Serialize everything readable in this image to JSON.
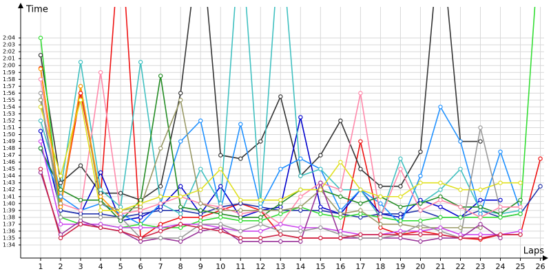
{
  "chart_data": {
    "type": "line",
    "y_label": "Time",
    "x_label": "Laps",
    "x": [
      1,
      2,
      3,
      4,
      5,
      6,
      7,
      8,
      9,
      10,
      11,
      12,
      13,
      14,
      15,
      16,
      17,
      18,
      19,
      20,
      21,
      22,
      23,
      24,
      25,
      26
    ],
    "xlim": [
      0,
      26.6
    ],
    "ylim": [
      92,
      128
    ],
    "xticks": [
      1,
      2,
      3,
      4,
      5,
      6,
      7,
      8,
      9,
      10,
      11,
      12,
      13,
      14,
      15,
      16,
      17,
      18,
      19,
      20,
      21,
      22,
      23,
      24,
      25,
      26
    ],
    "yticks": [
      {
        "value": 94,
        "label": "1:34"
      },
      {
        "value": 95,
        "label": "1:35"
      },
      {
        "value": 96,
        "label": "1:36"
      },
      {
        "value": 97,
        "label": "1:37"
      },
      {
        "value": 98,
        "label": "1:38"
      },
      {
        "value": 99,
        "label": "1:39"
      },
      {
        "value": 100,
        "label": "1:40"
      },
      {
        "value": 101,
        "label": "1:41"
      },
      {
        "value": 102,
        "label": "1:42"
      },
      {
        "value": 103,
        "label": "1:43"
      },
      {
        "value": 104,
        "label": "1:44"
      },
      {
        "value": 105,
        "label": "1:45"
      },
      {
        "value": 106,
        "label": "1:46"
      },
      {
        "value": 107,
        "label": "1:47"
      },
      {
        "value": 108,
        "label": "1:48"
      },
      {
        "value": 109,
        "label": "1:49"
      },
      {
        "value": 110,
        "label": "1:50"
      },
      {
        "value": 111,
        "label": "1:51"
      },
      {
        "value": 112,
        "label": "1:52"
      },
      {
        "value": 113,
        "label": "1:53"
      },
      {
        "value": 114,
        "label": "1:54"
      },
      {
        "value": 115,
        "label": "1:55"
      },
      {
        "value": 116,
        "label": "1:56"
      },
      {
        "value": 117,
        "label": "1:57"
      },
      {
        "value": 118,
        "label": "1:58"
      },
      {
        "value": 119,
        "label": "1:59"
      },
      {
        "value": 120,
        "label": "2:00"
      },
      {
        "value": 121,
        "label": "2:01"
      },
      {
        "value": 122,
        "label": "2:02"
      },
      {
        "value": 123,
        "label": "2:03"
      },
      {
        "value": 124,
        "label": "2:04"
      }
    ],
    "grid": true,
    "series": [
      {
        "color": "#ee1111",
        "values": [
          119.6,
          99.6,
          116,
          101,
          140,
          95,
          97,
          98,
          98,
          99,
          100,
          99,
          95.5,
          95,
          95,
          95,
          109,
          96.5,
          95.5,
          96,
          95.5,
          95,
          94.8,
          95.5,
          95.5,
          106.5
        ]
      },
      {
        "color": "#333333",
        "values": [
          121.5,
          103,
          105.5,
          101.5,
          101.5,
          100.5,
          102.5,
          116,
          140,
          107,
          106.5,
          109,
          115.5,
          104,
          107,
          112,
          105,
          102.5,
          102.5,
          107.5,
          140,
          109,
          109,
          null,
          null,
          null
        ]
      },
      {
        "color": "#0000cc",
        "values": [
          110.5,
          99,
          98.5,
          104.5,
          97.5,
          98,
          99.5,
          102.5,
          98.5,
          102.5,
          98,
          99,
          99.5,
          112.5,
          99.5,
          98.5,
          102,
          98.5,
          98,
          100.5,
          99.5,
          98,
          100.5,
          100.5,
          null,
          null
        ]
      },
      {
        "color": "#2233aa",
        "values": [
          115,
          99,
          98.5,
          98.5,
          98,
          98.5,
          99,
          99,
          98.5,
          99.5,
          100,
          99.5,
          99,
          99,
          99,
          98.5,
          98,
          98.5,
          98.5,
          99,
          98,
          98,
          99,
          98,
          98.5,
          102.5
        ]
      },
      {
        "color": "#1e90ff",
        "values": [
          108,
          101,
          99,
          100,
          98.5,
          97,
          100,
          109,
          112,
          99,
          111.5,
          99.5,
          105,
          106.5,
          105,
          99,
          102,
          100,
          97,
          104,
          114,
          109,
          98.5,
          107.5,
          99,
          null
        ]
      },
      {
        "color": "#40c0c0",
        "values": [
          112,
          102,
          120.5,
          102,
          99.5,
          120.5,
          100,
          98.5,
          105,
          100,
          140,
          100,
          140,
          104,
          105,
          102,
          102,
          98,
          106.5,
          100,
          102,
          105,
          99,
          98.5,
          99,
          null
        ]
      },
      {
        "color": "#228b22",
        "values": [
          108,
          102,
          100.5,
          100.5,
          97.5,
          100.5,
          118.5,
          99.5,
          99,
          98.5,
          98,
          98,
          100,
          102,
          102,
          101,
          100,
          101,
          99.5,
          100,
          101,
          99.5,
          99.5,
          98.5,
          100.5,
          null
        ]
      },
      {
        "color": "#33dd33",
        "values": [
          124,
          98,
          97,
          97,
          96.5,
          97,
          96.5,
          96.5,
          97.5,
          98,
          97.5,
          97.5,
          98.5,
          99.5,
          98.5,
          98,
          98.5,
          98,
          97.5,
          97.5,
          98,
          98,
          98,
          98,
          98.5,
          140
        ]
      },
      {
        "color": "#ff88aa",
        "values": [
          118,
          100,
          99,
          119,
          98.5,
          99,
          100,
          101,
          100,
          99.5,
          98.5,
          99,
          97,
          101,
          103,
          102,
          116,
          98,
          105,
          99,
          100.5,
          99.5,
          98,
          99.5,
          99.5,
          null
        ]
      },
      {
        "color": "#999966",
        "values": [
          115,
          100,
          117,
          100,
          99,
          99.5,
          108,
          115,
          100,
          99,
          99,
          99,
          99,
          99.5,
          102,
          98.5,
          99,
          97,
          97,
          96.5,
          96.5,
          96.5,
          96.5,
          null,
          null,
          null
        ]
      },
      {
        "color": "#e0e020",
        "values": [
          114,
          104,
          115,
          99,
          99,
          100,
          101,
          101,
          102,
          105,
          100.5,
          100.5,
          100.5,
          102,
          102,
          106,
          102,
          101,
          101,
          103,
          103,
          102,
          102,
          103,
          103,
          null
        ]
      },
      {
        "color": "#ff9900",
        "values": [
          119.5,
          99.5,
          117,
          101,
          98,
          null,
          null,
          null,
          null,
          null,
          null,
          null,
          null,
          null,
          null,
          null,
          null,
          null,
          null,
          null,
          null,
          null,
          null,
          null,
          null,
          null
        ]
      },
      {
        "color": "#cc44ee",
        "values": [
          109,
          97,
          97,
          97,
          96.5,
          96.5,
          96.5,
          97,
          97,
          96.5,
          96,
          96,
          97,
          96.5,
          96.5,
          96,
          95.5,
          95.5,
          96,
          96,
          96.5,
          95.5,
          95.5,
          95.5,
          96,
          null
        ]
      },
      {
        "color": "#993399",
        "values": [
          104.5,
          95.5,
          97.5,
          96.5,
          96,
          94.5,
          95,
          94.5,
          96,
          96.5,
          94.5,
          94.5,
          94.5,
          94.5,
          103,
          95,
          95,
          95,
          95,
          94.5,
          95,
          95,
          97,
          95,
          null,
          null
        ]
      },
      {
        "color": "#999999",
        "values": [
          116,
          98,
          98,
          98,
          98,
          95,
          95,
          95,
          97,
          97,
          96,
          97,
          96,
          96,
          96.5,
          95.5,
          95,
          95,
          95.5,
          97,
          96,
          95,
          111,
          99,
          null,
          null
        ]
      },
      {
        "color": "#cc2244",
        "values": [
          105,
          95,
          97,
          96.5,
          96,
          95,
          96,
          97,
          96.5,
          96,
          95,
          95,
          95.5,
          95,
          95,
          95,
          95.5,
          95.5,
          95.5,
          95.5,
          95.5,
          95,
          95,
          95.5,
          95.5,
          null
        ]
      }
    ]
  }
}
